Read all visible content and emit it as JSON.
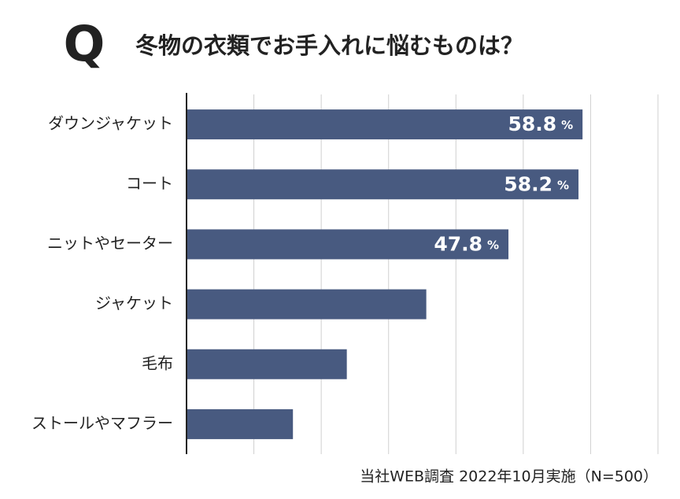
{
  "chart_data": {
    "type": "barh",
    "badge": "Q",
    "title": "冬物の衣類でお手入れに悩むものは？",
    "categories": [
      "ダウンジャケット",
      "コート",
      "ニットやセーター",
      "ジャケット",
      "毛布",
      "ストールやマフラー"
    ],
    "values": [
      58.8,
      58.2,
      47.8,
      35.6,
      23.8,
      15.8
    ],
    "value_labels": [
      "58.8 %",
      "58.2 %",
      "47.8 %",
      null,
      null,
      null
    ],
    "color": "#485a80",
    "xlim": [
      0,
      70
    ],
    "xticks": [
      0,
      10,
      20,
      30,
      40,
      50,
      60,
      70
    ],
    "grid": true,
    "note": "当社WEB調査 2022年10月実施（N=500）"
  }
}
